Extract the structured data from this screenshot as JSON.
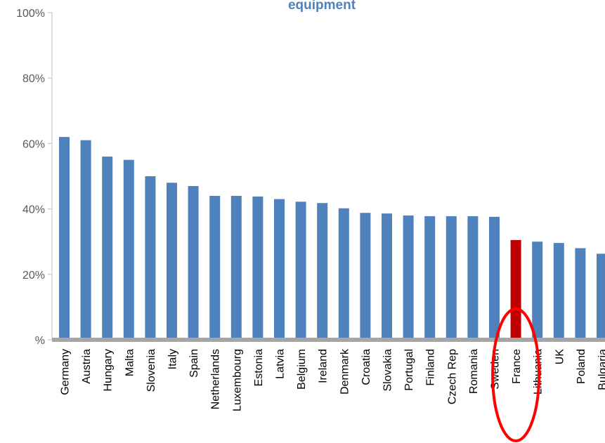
{
  "chart_data": {
    "type": "bar",
    "title": "equipment",
    "xlabel": "",
    "ylabel": "",
    "ylim": [
      0,
      100
    ],
    "yticks": [
      0,
      20,
      40,
      60,
      80,
      100
    ],
    "ytick_labels": [
      "%",
      "20%",
      "40%",
      "60%",
      "80%",
      "100%"
    ],
    "grid": false,
    "legend": "none",
    "categories": [
      "Germany",
      "Austria",
      "Hungary",
      "Malta",
      "Slovenia",
      "Italy",
      "Spain",
      "Netherlands",
      "Luxembourg",
      "Estonia",
      "Latvia",
      "Belgium",
      "Ireland",
      "Denmark",
      "Croatia",
      "Slovakia",
      "Portugal",
      "Finland",
      "Czech Rep",
      "Romania",
      "Sweden",
      "France",
      "Lithuania",
      "UK",
      "Poland",
      "Bulgaria"
    ],
    "values": [
      62,
      61,
      56,
      55,
      50,
      48,
      47,
      44,
      44,
      43.8,
      43,
      42.2,
      41.8,
      40.2,
      38.8,
      38.6,
      38,
      37.8,
      37.8,
      37.8,
      37.6,
      30.5,
      30,
      29.6,
      28,
      26.3
    ],
    "highlight_category": "France",
    "annotation": "red ellipse around France"
  },
  "colors": {
    "bar": "#4f81bd",
    "highlight": "#c00000",
    "title": "#4f81bd",
    "axis": "#bfbfbf",
    "baseline": "#a6a6a6",
    "annotation": "#ff0000"
  }
}
